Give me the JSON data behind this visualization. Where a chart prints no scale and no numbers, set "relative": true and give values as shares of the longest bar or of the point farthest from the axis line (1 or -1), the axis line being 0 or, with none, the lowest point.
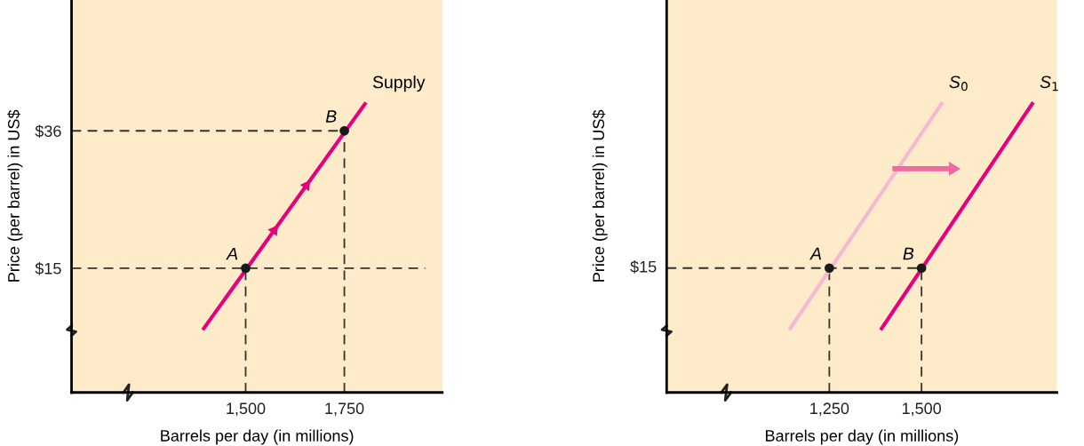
{
  "chart_data": [
    {
      "type": "line",
      "xlabel": "Barrels per day (in millions)",
      "ylabel": "Price (per barrel) in US$",
      "xlim": [
        1059,
        1998
      ],
      "ylim": [
        -4,
        56
      ],
      "xticks": [
        {
          "value": 1500,
          "label": "1,500"
        },
        {
          "value": 1750,
          "label": "1,750"
        }
      ],
      "yticks": [
        {
          "value": 15,
          "label": "$15"
        },
        {
          "value": 36,
          "label": "$36"
        }
      ],
      "grid": false,
      "legend": false,
      "series": [
        {
          "line_style": "dashed",
          "color": "#333333",
          "x": [
            1059,
            1955
          ],
          "values": [
            15,
            15
          ]
        },
        {
          "line_style": "dashed",
          "color": "#333333",
          "x": [
            1059,
            1750
          ],
          "values": [
            36,
            36
          ]
        },
        {
          "line_style": "dashed",
          "color": "#333333",
          "x": [
            1500,
            1500
          ],
          "values": [
            -4,
            15
          ]
        },
        {
          "line_style": "dashed",
          "color": "#333333",
          "x": [
            1750,
            1750
          ],
          "values": [
            -4,
            36
          ]
        },
        {
          "line_style": "solid",
          "color": "#e6007e",
          "x": [
            1394,
            1802
          ],
          "values": [
            5.8,
            40.1
          ]
        },
        {
          "type": "scatter",
          "marker": "circle",
          "color": "#1a1a1a",
          "x": [
            1500,
            1750
          ],
          "values": [
            15,
            36
          ]
        }
      ],
      "annotations": [
        {
          "text": "A",
          "x": 1500,
          "y": 15
        },
        {
          "text": "B",
          "x": 1750,
          "y": 36
        },
        {
          "text": "Supply",
          "x": 1802,
          "y": 40.1
        }
      ]
    },
    {
      "type": "line",
      "relative": true,
      "xlabel": "Barrels per day (in millions)",
      "ylabel": "Price (per barrel) in US$",
      "xlim": [
        809,
        1867
      ],
      "xticks": [
        {
          "value": 1250,
          "label": "1,250"
        },
        {
          "value": 1500,
          "label": "1,500"
        }
      ],
      "grid": false,
      "legend": false,
      "series": [
        {
          "line_style": "dashed",
          "color": "#333333",
          "x": [
            809,
            1500
          ],
          "values": [
            0.431,
            0.431
          ]
        },
        {
          "line_style": "dashed",
          "color": "#333333",
          "x": [
            1250,
            1250
          ],
          "values": [
            0,
            0.431
          ]
        },
        {
          "line_style": "dashed",
          "color": "#333333",
          "x": [
            1500,
            1500
          ],
          "values": [
            0,
            0.431
          ]
        },
        {
          "line_style": "solid",
          "color": "#f5b8d5",
          "x": [
            1144,
            1554
          ],
          "values": [
            0.222,
            1
          ]
        },
        {
          "line_style": "solid",
          "color": "#e6007e",
          "x": [
            1392,
            1800
          ],
          "values": [
            0.222,
            1
          ]
        },
        {
          "type": "scatter",
          "marker": "circle",
          "color": "#1a1a1a",
          "x": [
            1250,
            1500
          ],
          "values": [
            0.431,
            0.431
          ]
        }
      ],
      "annotations": [
        {
          "text": "$15",
          "x": 809,
          "y": 0.431
        },
        {
          "text": "A",
          "x": 1250,
          "y": 0.431
        },
        {
          "text": "B",
          "x": 1500,
          "y": 0.431
        },
        {
          "text": "S$_{0}$",
          "x": 1554,
          "y": 1
        },
        {
          "text": "S$_{1}$",
          "x": 1800,
          "y": 1
        }
      ]
    }
  ]
}
